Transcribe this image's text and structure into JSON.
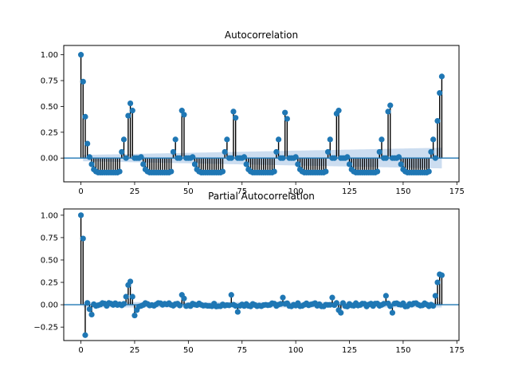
{
  "chart_data": [
    {
      "type": "stem",
      "title": "Autocorrelation",
      "xlim": [
        -8,
        176
      ],
      "ylim": [
        -0.23,
        1.09
      ],
      "x_ticks": [
        0,
        25,
        50,
        75,
        100,
        125,
        150,
        175
      ],
      "y_ticks": [
        0.0,
        0.25,
        0.5,
        0.75,
        1.0
      ],
      "x_tick_labels": [
        "0",
        "25",
        "50",
        "75",
        "100",
        "125",
        "150",
        "175"
      ],
      "y_tick_labels": [
        "0.00",
        "0.25",
        "0.50",
        "0.75",
        "1.00"
      ],
      "period": 24,
      "peaks": [
        {
          "lag": 0,
          "value": 1.0
        },
        {
          "lag": 1,
          "value": 0.74
        },
        {
          "lag": 2,
          "value": 0.4
        },
        {
          "lag": 3,
          "value": 0.14
        },
        {
          "lag": 22,
          "value": 0.41
        },
        {
          "lag": 23,
          "value": 0.53
        },
        {
          "lag": 24,
          "value": 0.46
        },
        {
          "lag": 47,
          "value": 0.46
        },
        {
          "lag": 48,
          "value": 0.42
        },
        {
          "lag": 71,
          "value": 0.45
        },
        {
          "lag": 72,
          "value": 0.39
        },
        {
          "lag": 95,
          "value": 0.44
        },
        {
          "lag": 96,
          "value": 0.38
        },
        {
          "lag": 119,
          "value": 0.43
        },
        {
          "lag": 120,
          "value": 0.46
        },
        {
          "lag": 143,
          "value": 0.45
        },
        {
          "lag": 144,
          "value": 0.51
        },
        {
          "lag": 166,
          "value": 0.36
        },
        {
          "lag": 167,
          "value": 0.63
        },
        {
          "lag": 168,
          "value": 0.79
        }
      ],
      "trough_value": -0.14,
      "confidence_band": {
        "start": 0.03,
        "end": 0.1
      },
      "line_color": "#000000",
      "marker_color": "#1f77b4",
      "band_color": "#c6d9ee"
    },
    {
      "type": "stem",
      "title": "Partial Autocorrelation",
      "xlim": [
        -8,
        176
      ],
      "ylim": [
        -0.4,
        1.07
      ],
      "x_ticks": [
        0,
        25,
        50,
        75,
        100,
        125,
        150,
        175
      ],
      "y_ticks": [
        -0.25,
        0.0,
        0.25,
        0.5,
        0.75,
        1.0
      ],
      "x_tick_labels": [
        "0",
        "25",
        "50",
        "75",
        "100",
        "125",
        "150",
        "175"
      ],
      "y_tick_labels": [
        "−0.25",
        "0.00",
        "0.25",
        "0.50",
        "0.75",
        "1.00"
      ],
      "peaks": [
        {
          "lag": 0,
          "value": 1.0
        },
        {
          "lag": 1,
          "value": 0.74
        },
        {
          "lag": 2,
          "value": -0.34
        },
        {
          "lag": 3,
          "value": 0.02
        },
        {
          "lag": 4,
          "value": -0.05
        },
        {
          "lag": 5,
          "value": -0.11
        },
        {
          "lag": 21,
          "value": 0.09
        },
        {
          "lag": 22,
          "value": 0.22
        },
        {
          "lag": 23,
          "value": 0.26
        },
        {
          "lag": 24,
          "value": 0.09
        },
        {
          "lag": 25,
          "value": -0.12
        },
        {
          "lag": 26,
          "value": -0.06
        },
        {
          "lag": 47,
          "value": 0.11
        },
        {
          "lag": 48,
          "value": 0.07
        },
        {
          "lag": 70,
          "value": 0.11
        },
        {
          "lag": 73,
          "value": -0.08
        },
        {
          "lag": 94,
          "value": 0.08
        },
        {
          "lag": 117,
          "value": 0.08
        },
        {
          "lag": 120,
          "value": -0.06
        },
        {
          "lag": 121,
          "value": -0.09
        },
        {
          "lag": 142,
          "value": 0.1
        },
        {
          "lag": 145,
          "value": -0.09
        },
        {
          "lag": 165,
          "value": 0.1
        },
        {
          "lag": 166,
          "value": 0.25
        },
        {
          "lag": 167,
          "value": 0.34
        },
        {
          "lag": 168,
          "value": 0.33
        }
      ],
      "confidence_band": {
        "start": 0.03,
        "end": 0.03
      },
      "line_color": "#000000",
      "marker_color": "#1f77b4",
      "band_color": "#c6d9ee"
    }
  ]
}
